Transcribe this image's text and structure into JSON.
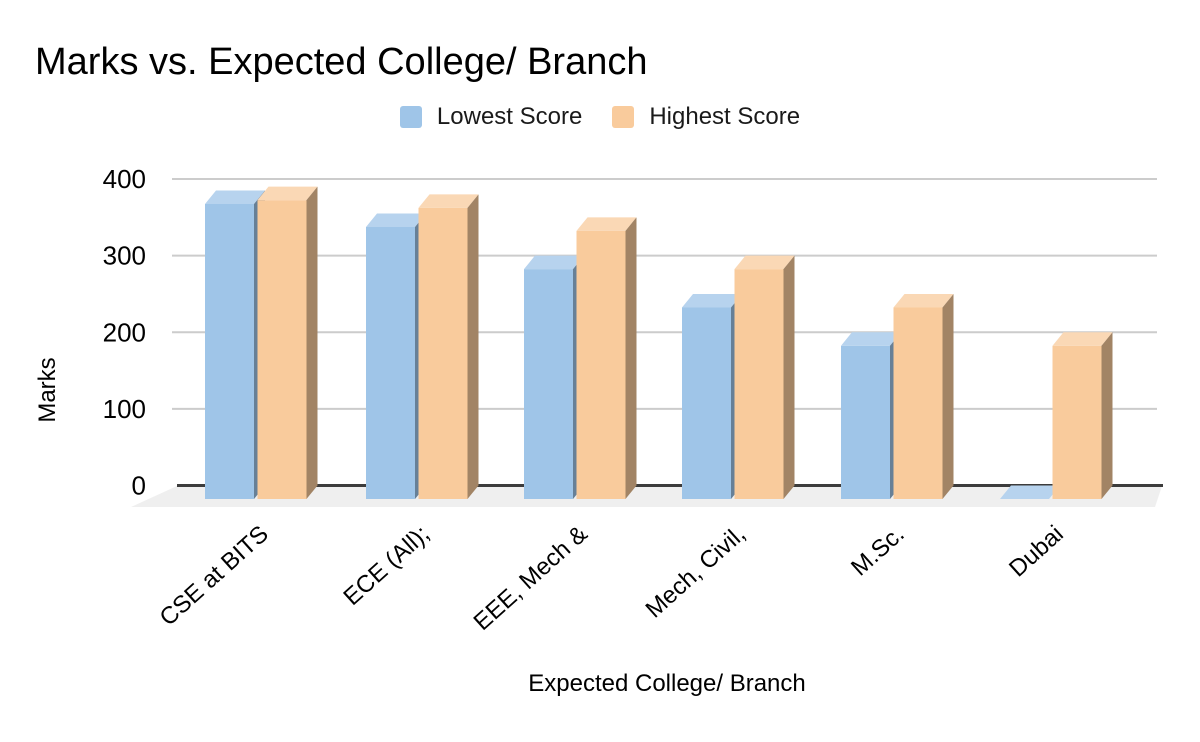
{
  "title": "Marks vs. Expected College/ Branch",
  "axes": {
    "y_title": "Marks",
    "x_title": "Expected College/ Branch"
  },
  "legend": {
    "items": [
      {
        "label": "Lowest Score",
        "color": "#9fc5e8"
      },
      {
        "label": "Highest Score",
        "color": "#f9cb9c"
      }
    ]
  },
  "chart_data": {
    "type": "bar",
    "style": "3d-column",
    "title": "Marks vs. Expected College/ Branch",
    "xlabel": "Expected College/ Branch",
    "ylabel": "Marks",
    "ylim": [
      0,
      400
    ],
    "y_ticks": [
      0,
      100,
      200,
      300,
      400
    ],
    "grid": "horizontal",
    "legend_position": "top",
    "categories": [
      "CSE at BITS",
      "ECE (All);",
      "EEE, Mech &",
      "Mech, Civil,",
      "M.Sc.",
      "Dubai"
    ],
    "series": [
      {
        "name": "Lowest Score",
        "color": "#9fc5e8",
        "values": [
          385,
          355,
          300,
          250,
          200,
          0
        ]
      },
      {
        "name": "Highest Score",
        "color": "#f9cb9c",
        "values": [
          390,
          380,
          350,
          300,
          250,
          200
        ]
      }
    ]
  },
  "colors": {
    "background": "#ffffff",
    "gridline": "#cccccc",
    "zero_line": "#3c3c3c",
    "floor": "#efefef",
    "tick_text": "#000000",
    "lowest": {
      "front": "#9fc5e8",
      "top": "#b7d3ee",
      "side": "#678097"
    },
    "highest": {
      "front": "#f9cb9c",
      "top": "#fad8b5",
      "side": "#a28465"
    }
  }
}
